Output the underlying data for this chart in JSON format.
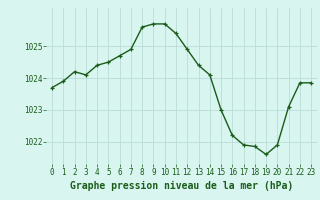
{
  "x": [
    0,
    1,
    2,
    3,
    4,
    5,
    6,
    7,
    8,
    9,
    10,
    11,
    12,
    13,
    14,
    15,
    16,
    17,
    18,
    19,
    20,
    21,
    22,
    23
  ],
  "y": [
    1023.7,
    1023.9,
    1024.2,
    1024.1,
    1024.4,
    1024.5,
    1024.7,
    1024.9,
    1025.6,
    1025.7,
    1025.7,
    1025.4,
    1024.9,
    1024.4,
    1024.1,
    1023.0,
    1022.2,
    1021.9,
    1021.85,
    1021.6,
    1021.9,
    1023.1,
    1023.85,
    1023.85
  ],
  "line_color": "#1a5c1a",
  "marker": "+",
  "markersize": 3,
  "linewidth": 1.0,
  "bg_color": "#d8f5f0",
  "grid_color": "#b8ddd8",
  "xlabel": "Graphe pression niveau de la mer (hPa)",
  "xlabel_fontsize": 7,
  "xlabel_color": "#1a5c1a",
  "xlabel_fontweight": "bold",
  "tick_labels": [
    "0",
    "1",
    "2",
    "3",
    "4",
    "5",
    "6",
    "7",
    "8",
    "9",
    "10",
    "11",
    "12",
    "13",
    "14",
    "15",
    "16",
    "17",
    "18",
    "19",
    "20",
    "21",
    "22",
    "23"
  ],
  "ytick_values": [
    1022,
    1023,
    1024,
    1025
  ],
  "ylim": [
    1021.3,
    1026.2
  ],
  "xlim": [
    -0.5,
    23.5
  ],
  "tick_fontsize": 5.5,
  "tick_color": "#1a5c1a"
}
